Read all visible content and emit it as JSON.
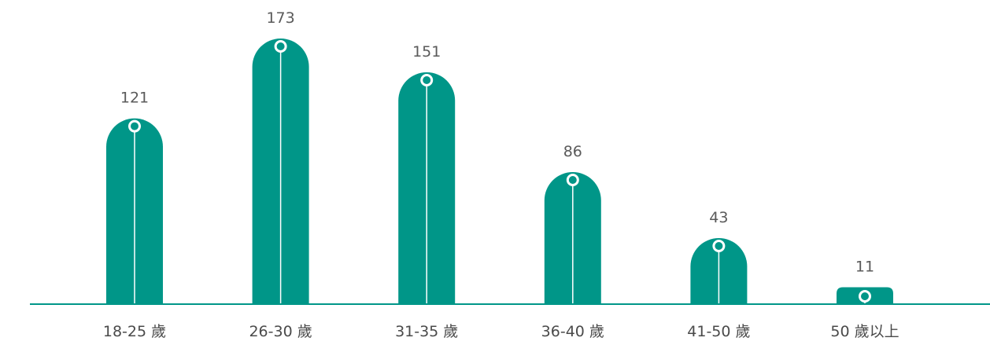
{
  "chart_data": {
    "type": "bar",
    "categories": [
      "18-25 歲",
      "26-30 歲",
      "31-35 歲",
      "36-40 歲",
      "41-50 歲",
      "50 歲以上"
    ],
    "values": [
      121,
      173,
      151,
      86,
      43,
      11
    ],
    "title": "",
    "xlabel": "",
    "ylabel": "",
    "ylim": [
      0,
      173
    ],
    "grid": false,
    "legend": "none",
    "data_labels": true,
    "bar_color": "#009688",
    "axis_color": "#009688",
    "marker_fill": "#ffffff"
  }
}
